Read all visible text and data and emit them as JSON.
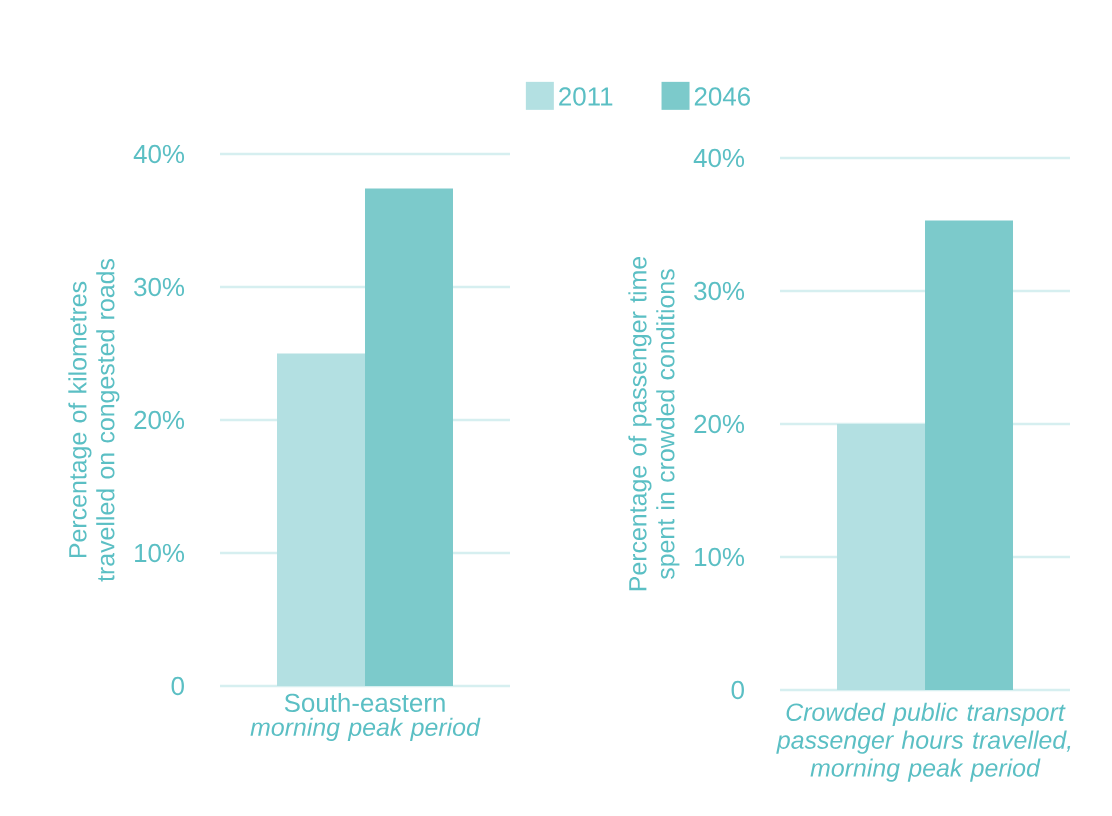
{
  "chart_data": [
    {
      "type": "bar",
      "categories": [
        "South-eastern"
      ],
      "xlabel": "morning peak period",
      "ylabel": "Percentage of kilometres travelled on congested roads",
      "series": [
        {
          "name": "2011",
          "color": "#b3e0e2",
          "values": [
            25
          ]
        },
        {
          "name": "2046",
          "color": "#7ccacb",
          "values": [
            37.4
          ]
        }
      ],
      "ylim": [
        0,
        40
      ],
      "yticks": [
        0,
        {
          "value": 10,
          "label": "10%"
        },
        {
          "value": 20,
          "label": "20%"
        },
        {
          "value": 30,
          "label": "30%"
        },
        {
          "value": 40,
          "label": "40%"
        }
      ],
      "grid": "y",
      "legend": "top"
    },
    {
      "type": "bar",
      "categories": [
        null
      ],
      "xlabel": "Crowded public transport passenger hours travelled, morning peak period",
      "ylabel": "Percentage of passenger time spent in crowded conditions",
      "series": [
        {
          "color": "#b3e0e2",
          "values": [
            20
          ]
        },
        {
          "color": "#7ccacb",
          "values": [
            35.3
          ]
        }
      ],
      "ylim": [
        0,
        40
      ],
      "yticks": [
        0,
        {
          "value": 10,
          "label": "10%"
        },
        {
          "value": 20,
          "label": "20%"
        },
        {
          "value": 30,
          "label": "30%"
        },
        {
          "value": 40,
          "label": "40%"
        }
      ],
      "grid": "y"
    }
  ]
}
